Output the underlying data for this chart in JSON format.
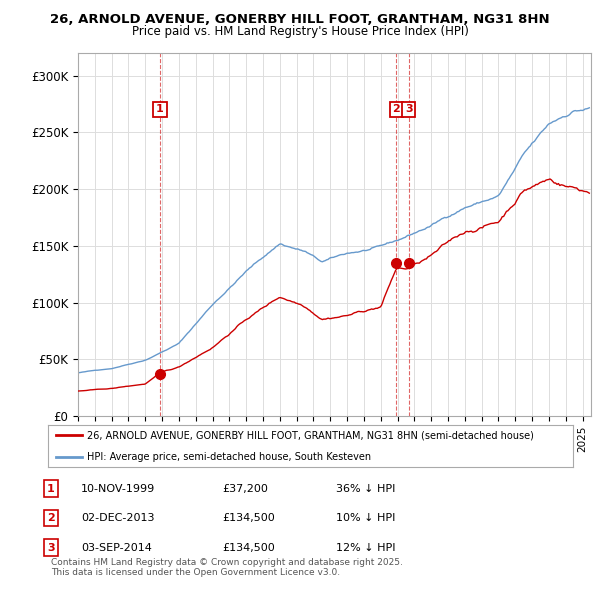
{
  "title1": "26, ARNOLD AVENUE, GONERBY HILL FOOT, GRANTHAM, NG31 8HN",
  "title2": "Price paid vs. HM Land Registry's House Price Index (HPI)",
  "ylim": [
    0,
    320000
  ],
  "yticks": [
    0,
    50000,
    100000,
    150000,
    200000,
    250000,
    300000
  ],
  "ytick_labels": [
    "£0",
    "£50K",
    "£100K",
    "£150K",
    "£200K",
    "£250K",
    "£300K"
  ],
  "xlim_start": 1995.0,
  "xlim_end": 2025.5,
  "transactions": [
    {
      "num": 1,
      "date": 1999.87,
      "price": 37200
    },
    {
      "num": 2,
      "date": 2013.92,
      "price": 134500
    },
    {
      "num": 3,
      "date": 2014.67,
      "price": 134500
    }
  ],
  "vline_dates": [
    1999.87,
    2013.92,
    2014.67
  ],
  "legend_line1": "26, ARNOLD AVENUE, GONERBY HILL FOOT, GRANTHAM, NG31 8HN (semi-detached house)",
  "legend_line2": "HPI: Average price, semi-detached house, South Kesteven",
  "table_rows": [
    {
      "num": 1,
      "date": "10-NOV-1999",
      "price": "£37,200",
      "hpi": "36% ↓ HPI"
    },
    {
      "num": 2,
      "date": "02-DEC-2013",
      "price": "£134,500",
      "hpi": "10% ↓ HPI"
    },
    {
      "num": 3,
      "date": "03-SEP-2014",
      "price": "£134,500",
      "hpi": "12% ↓ HPI"
    }
  ],
  "footer": "Contains HM Land Registry data © Crown copyright and database right 2025.\nThis data is licensed under the Open Government Licence v3.0.",
  "property_color": "#cc0000",
  "hpi_color": "#6699cc",
  "bg_color": "#ffffff",
  "grid_color": "#dddddd"
}
